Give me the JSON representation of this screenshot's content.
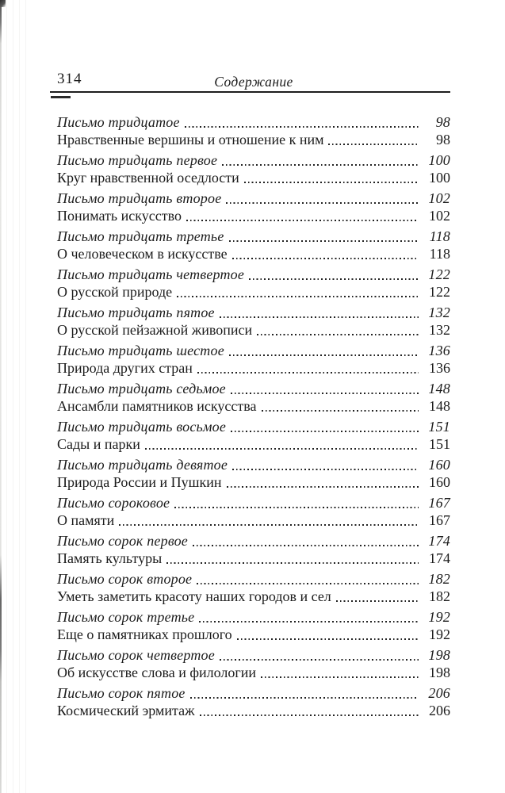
{
  "page": {
    "number": "314",
    "running_title": "Содержание"
  },
  "colors": {
    "text": "#1b1b1b",
    "background": "#ffffff",
    "rule": "#1d1d1d"
  },
  "toc": {
    "entries": [
      {
        "letter": "Письмо тридцатое",
        "letter_page": "98",
        "topic": "Нравственные вершины и отношение к ним",
        "topic_page": "98"
      },
      {
        "letter": "Письмо тридцать первое",
        "letter_page": "100",
        "topic": "Круг нравственной оседлости",
        "topic_page": "100"
      },
      {
        "letter": "Письмо тридцать второе",
        "letter_page": "102",
        "topic": "Понимать искусство",
        "topic_page": "102"
      },
      {
        "letter": "Письмо тридцать третье",
        "letter_page": "118",
        "topic": "О человеческом в искусстве",
        "topic_page": "118"
      },
      {
        "letter": "Письмо тридцать четвертое",
        "letter_page": "122",
        "topic": "О русской природе",
        "topic_page": "122"
      },
      {
        "letter": "Письмо тридцать пятое",
        "letter_page": "132",
        "topic": "О русской пейзажной живописи",
        "topic_page": "132"
      },
      {
        "letter": "Письмо тридцать шестое",
        "letter_page": "136",
        "topic": "Природа других стран",
        "topic_page": "136"
      },
      {
        "letter": "Письмо тридцать седьмое",
        "letter_page": "148",
        "topic": "Ансамбли памятников искусства",
        "topic_page": "148"
      },
      {
        "letter": "Письмо тридцать восьмое",
        "letter_page": "151",
        "topic": "Сады и парки",
        "topic_page": "151"
      },
      {
        "letter": "Письмо тридцать девятое",
        "letter_page": "160",
        "topic": "Природа России и Пушкин",
        "topic_page": "160"
      },
      {
        "letter": "Письмо сороковое",
        "letter_page": "167",
        "topic": "О памяти",
        "topic_page": "167"
      },
      {
        "letter": "Письмо сорок первое",
        "letter_page": "174",
        "topic": "Память культуры",
        "topic_page": "174"
      },
      {
        "letter": "Письмо сорок второе",
        "letter_page": "182",
        "topic": "Уметь заметить красоту наших городов и сел",
        "topic_page": "182"
      },
      {
        "letter": "Письмо сорок третье",
        "letter_page": "192",
        "topic": "Еще о памятниках прошлого",
        "topic_page": "192"
      },
      {
        "letter": "Письмо сорок четвертое",
        "letter_page": "198",
        "topic": "Об искусстве слова и филологии",
        "topic_page": "198"
      },
      {
        "letter": "Письмо сорок пятое",
        "letter_page": "206",
        "topic": "Космический эрмитаж",
        "topic_page": "206"
      }
    ]
  }
}
